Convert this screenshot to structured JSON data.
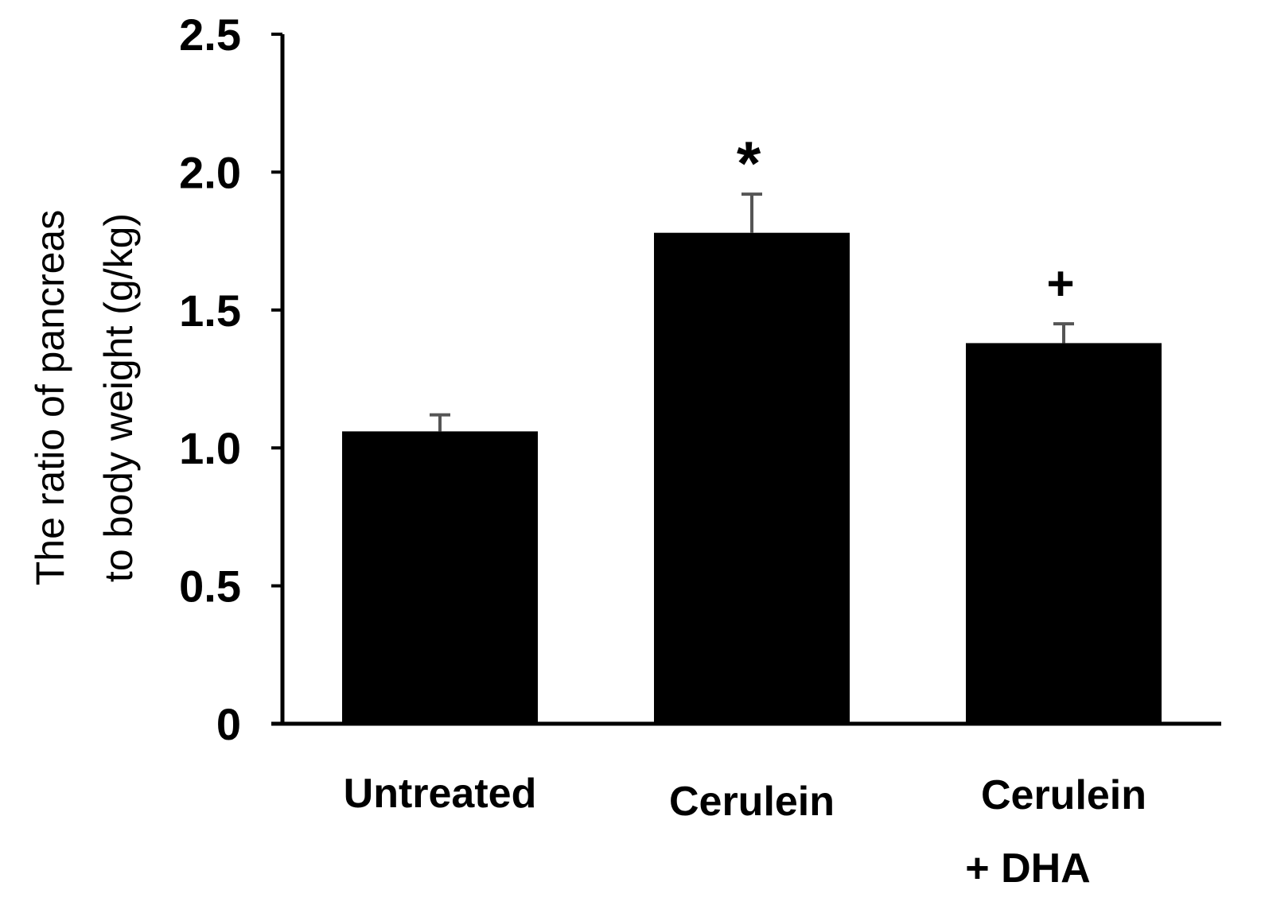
{
  "chart_data": {
    "type": "bar",
    "categories": [
      [
        "Untreated"
      ],
      [
        "Cerulein"
      ],
      [
        "Cerulein",
        "+ DHA"
      ]
    ],
    "values": [
      1.06,
      1.78,
      1.38
    ],
    "error_bars": [
      0.06,
      0.14,
      0.07
    ],
    "annotations": [
      "",
      "*",
      "+"
    ],
    "title": "",
    "xlabel": "",
    "ylabel": [
      "The ratio of pancreas",
      "to body weight (g/kg)"
    ],
    "ylim": [
      0,
      2.5
    ],
    "yticks": [
      0,
      0.5,
      1.0,
      1.5,
      2.0,
      2.5
    ],
    "ytick_labels": [
      "0",
      "0.5",
      "1.0",
      "1.5",
      "2.0",
      "2.5"
    ],
    "grid": false,
    "legend": "none",
    "bar_color": "#000000",
    "error_bar_color": "#555555"
  }
}
